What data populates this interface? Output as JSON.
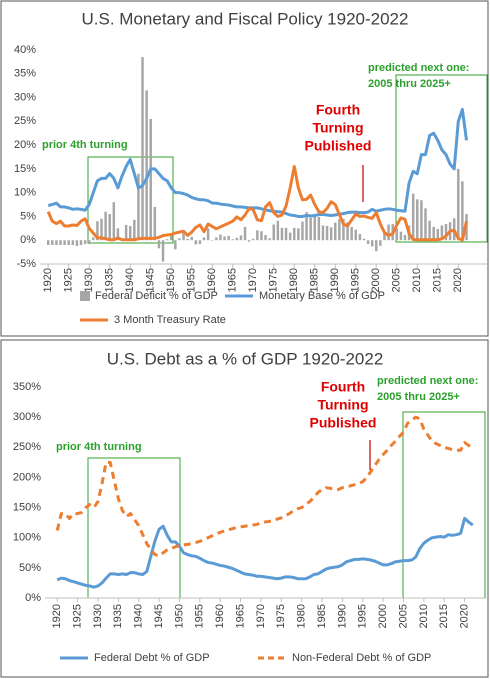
{
  "chart_data": [
    {
      "type": "combo",
      "title": "U.S. Monetary and Fiscal Policy 1920-2022",
      "x": [
        1920,
        1921,
        1922,
        1923,
        1924,
        1925,
        1926,
        1927,
        1928,
        1929,
        1930,
        1931,
        1932,
        1933,
        1934,
        1935,
        1936,
        1937,
        1938,
        1939,
        1940,
        1941,
        1942,
        1943,
        1944,
        1945,
        1946,
        1947,
        1948,
        1949,
        1950,
        1951,
        1952,
        1953,
        1954,
        1955,
        1956,
        1957,
        1958,
        1959,
        1960,
        1961,
        1962,
        1963,
        1964,
        1965,
        1966,
        1967,
        1968,
        1969,
        1970,
        1971,
        1972,
        1973,
        1974,
        1975,
        1976,
        1977,
        1978,
        1979,
        1980,
        1981,
        1982,
        1983,
        1984,
        1985,
        1986,
        1987,
        1988,
        1989,
        1990,
        1991,
        1992,
        1993,
        1994,
        1995,
        1996,
        1997,
        1998,
        1999,
        2000,
        2001,
        2002,
        2003,
        2004,
        2005,
        2006,
        2007,
        2008,
        2009,
        2010,
        2011,
        2012,
        2013,
        2014,
        2015,
        2016,
        2017,
        2018,
        2019,
        2020,
        2021,
        2022
      ],
      "series": [
        {
          "name": "Federal Deficit % of GDP",
          "type": "bar",
          "color": "#a6a6a6",
          "values": [
            -1,
            -1,
            -1,
            -1,
            -1,
            -1,
            -1,
            -1.2,
            -1,
            -0.8,
            -0.8,
            0.6,
            4,
            4.5,
            6,
            5.5,
            8,
            2.5,
            0.1,
            3.2,
            3,
            4.3,
            14,
            38.5,
            31.5,
            25.5,
            7,
            -1.7,
            -4.5,
            0.2,
            1.1,
            -1.9,
            0.4,
            1.7,
            0.3,
            0.7,
            -0.9,
            -0.8,
            0.6,
            2.5,
            -0.1,
            0.6,
            1.2,
            0.8,
            0.9,
            0.2,
            0.5,
            1,
            2.8,
            -0.3,
            0.3,
            2.1,
            1.9,
            1.1,
            0.4,
            3.3,
            4.1,
            2.6,
            2.6,
            1.6,
            2.6,
            2.5,
            3.9,
            5.9,
            4.7,
            5,
            4.9,
            3.1,
            3,
            2.7,
            3.7,
            4.4,
            4.5,
            3.8,
            2.8,
            2.2,
            1.3,
            0.3,
            -0.8,
            -1.3,
            -2.3,
            -1.2,
            1.5,
            3.3,
            3.4,
            2.5,
            1.8,
            1.1,
            3.1,
            9.8,
            8.6,
            8.4,
            6.7,
            4.1,
            2.8,
            2.4,
            3.1,
            3.4,
            3.8,
            4.6,
            15,
            12.4,
            5.5
          ]
        },
        {
          "name": "Monetary Base % of GDP",
          "type": "line",
          "color": "#5b9bd5",
          "values": [
            7.3,
            7.5,
            7.8,
            7,
            7,
            6.8,
            6.5,
            6.6,
            6.5,
            6.3,
            7.5,
            10,
            12.5,
            13,
            13,
            14,
            13,
            11,
            13.5,
            15.5,
            17,
            14,
            11,
            11.5,
            13,
            15,
            15,
            14,
            13,
            12.5,
            11,
            10,
            10,
            9.8,
            9.5,
            9,
            8.7,
            8.5,
            8.5,
            8.3,
            7.8,
            7.8,
            7.6,
            7.5,
            7.4,
            7.2,
            7,
            7,
            6.9,
            6.8,
            6.8,
            6.8,
            6.6,
            6.4,
            6.2,
            6.1,
            6,
            5.9,
            5.6,
            5.3,
            5.2,
            5,
            5,
            5.2,
            5.1,
            5.2,
            5.4,
            5.4,
            5.3,
            5.2,
            5.3,
            5.5,
            5.6,
            5.8,
            5.9,
            5.9,
            5.8,
            5.8,
            5.9,
            6.5,
            6.1,
            6.3,
            6.5,
            6.6,
            6.5,
            6.3,
            6.2,
            6.1,
            12,
            14.5,
            14,
            18,
            18,
            22,
            22.5,
            21,
            19,
            18,
            16,
            15,
            25,
            27.5,
            21
          ]
        },
        {
          "name": "3 Month Treasury Rate",
          "type": "line",
          "color": "#ed7d31",
          "values": [
            6,
            4,
            3.5,
            4,
            3,
            3,
            3.2,
            3.1,
            4,
            4.5,
            2.5,
            1.5,
            0.5,
            0.5,
            0.3,
            0.1,
            0.1,
            0.5,
            0.1,
            0.1,
            0.1,
            0.1,
            0.3,
            0.4,
            0.4,
            0.4,
            0.4,
            0.6,
            1,
            1.1,
            1.2,
            1.5,
            1.7,
            1.9,
            1,
            1.7,
            2.7,
            3.2,
            1.8,
            3.4,
            2.9,
            2.4,
            2.8,
            3.2,
            3.6,
            4,
            4.9,
            4.3,
            5.3,
            6.7,
            6.4,
            4.3,
            4.1,
            7,
            7.9,
            5.8,
            5,
            5.3,
            7.2,
            11,
            15.5,
            11,
            8.5,
            8.6,
            9.5,
            7.5,
            6,
            5.8,
            6.7,
            8.1,
            7.5,
            5.4,
            3.4,
            3,
            4.3,
            5.5,
            5,
            5.1,
            4.8,
            4.6,
            5.8,
            3.4,
            1.6,
            1,
            1.4,
            3.2,
            4.7,
            4.4,
            1.4,
            0.15,
            0.1,
            0.1,
            0.1,
            0.1,
            0.1,
            0.1,
            0.3,
            0.9,
            1.9,
            2.1,
            0.4,
            0.05,
            4
          ]
        }
      ],
      "xlim": [
        1918,
        2027
      ],
      "xticks": [
        1920,
        1925,
        1930,
        1935,
        1940,
        1945,
        1950,
        1955,
        1960,
        1965,
        1970,
        1975,
        1980,
        1985,
        1990,
        1995,
        2000,
        2005,
        2010,
        2015,
        2020
      ],
      "ylim": [
        -5,
        40
      ],
      "yticks": [
        {
          "value": -5,
          "label": "-5%"
        },
        {
          "value": 0,
          "label": "0%"
        },
        {
          "value": 5,
          "label": "5%"
        },
        {
          "value": 10,
          "label": "10%"
        },
        {
          "value": 15,
          "label": "15%"
        },
        {
          "value": 20,
          "label": "20%"
        },
        {
          "value": 25,
          "label": "25%"
        },
        {
          "value": 30,
          "label": "30%"
        },
        {
          "value": 35,
          "label": "35%"
        },
        {
          "value": 40,
          "label": "40%"
        }
      ],
      "grid": false,
      "legend": "bottom",
      "annotations": {
        "prior": "prior 4th turning",
        "published": [
          "Fourth",
          "Turning",
          "Published"
        ],
        "predicted": [
          "predicted next one:",
          "2005 thru 2025+"
        ]
      }
    },
    {
      "type": "line",
      "title": "U.S. Debt as a % of GDP 1920-2022",
      "x": [
        1920,
        1921,
        1922,
        1923,
        1924,
        1925,
        1926,
        1927,
        1928,
        1929,
        1930,
        1931,
        1932,
        1933,
        1934,
        1935,
        1936,
        1937,
        1938,
        1939,
        1940,
        1941,
        1942,
        1943,
        1944,
        1945,
        1946,
        1947,
        1948,
        1949,
        1950,
        1951,
        1952,
        1953,
        1954,
        1955,
        1956,
        1957,
        1958,
        1959,
        1960,
        1961,
        1962,
        1963,
        1964,
        1965,
        1966,
        1967,
        1968,
        1969,
        1970,
        1971,
        1972,
        1973,
        1974,
        1975,
        1976,
        1977,
        1978,
        1979,
        1980,
        1981,
        1982,
        1983,
        1984,
        1985,
        1986,
        1987,
        1988,
        1989,
        1990,
        1991,
        1992,
        1993,
        1994,
        1995,
        1996,
        1997,
        1998,
        1999,
        2000,
        2001,
        2002,
        2003,
        2004,
        2005,
        2006,
        2007,
        2008,
        2009,
        2010,
        2011,
        2012,
        2013,
        2014,
        2015,
        2016,
        2017,
        2018,
        2019,
        2020,
        2021,
        2022
      ],
      "series": [
        {
          "name": "Federal Debt % of GDP",
          "type": "line",
          "color": "#5b9bd5",
          "style": "solid",
          "values": [
            30,
            33,
            32,
            29,
            27,
            25,
            23,
            21,
            20,
            18,
            20,
            25,
            33,
            40,
            40,
            39,
            40,
            39,
            42,
            42,
            40,
            39,
            44,
            70,
            95,
            114,
            119,
            104,
            93,
            93,
            86,
            75,
            72,
            70,
            69,
            66,
            62,
            59,
            58,
            56,
            54,
            53,
            51,
            49,
            46,
            43,
            40,
            39,
            38,
            36,
            36,
            35,
            34,
            33,
            32,
            33,
            35,
            35,
            34,
            32,
            32,
            32,
            35,
            39,
            40,
            44,
            48,
            50,
            51,
            52,
            55,
            60,
            62,
            64,
            64,
            65,
            64,
            63,
            61,
            58,
            55,
            55,
            57,
            60,
            61,
            62,
            62,
            63,
            68,
            82,
            91,
            96,
            100,
            101,
            102,
            101,
            105,
            104,
            105,
            107,
            132,
            126,
            121
          ]
        },
        {
          "name": "Non-Federal Debt % of GDP",
          "type": "line",
          "color": "#ed7d31",
          "style": "dashed",
          "values": [
            112,
            140,
            140,
            132,
            140,
            140,
            142,
            150,
            155,
            150,
            160,
            190,
            225,
            225,
            195,
            165,
            145,
            135,
            140,
            130,
            120,
            105,
            90,
            80,
            72,
            70,
            75,
            80,
            82,
            85,
            87,
            88,
            89,
            90,
            92,
            94,
            97,
            100,
            103,
            106,
            109,
            111,
            113,
            115,
            117,
            118,
            119,
            120,
            121,
            122,
            125,
            126,
            127,
            128,
            131,
            133,
            137,
            140,
            145,
            148,
            150,
            155,
            160,
            167,
            175,
            180,
            183,
            182,
            180,
            180,
            183,
            185,
            186,
            188,
            190,
            193,
            200,
            210,
            220,
            230,
            238,
            245,
            253,
            260,
            268,
            275,
            290,
            295,
            300,
            297,
            280,
            270,
            260,
            256,
            253,
            250,
            248,
            246,
            245,
            245,
            258,
            253,
            248
          ]
        }
      ],
      "xlim": [
        1917,
        2025
      ],
      "xticks": [
        1920,
        1925,
        1930,
        1935,
        1940,
        1945,
        1950,
        1955,
        1960,
        1965,
        1970,
        1975,
        1980,
        1985,
        1990,
        1995,
        2000,
        2005,
        2010,
        2015,
        2020
      ],
      "ylim": [
        0,
        350
      ],
      "yticks": [
        {
          "value": 0,
          "label": "0%"
        },
        {
          "value": 50,
          "label": "50%"
        },
        {
          "value": 100,
          "label": "100%"
        },
        {
          "value": 150,
          "label": "150%"
        },
        {
          "value": 200,
          "label": "200%"
        },
        {
          "value": 250,
          "label": "250%"
        },
        {
          "value": 300,
          "label": "300%"
        },
        {
          "value": 350,
          "label": "350%"
        }
      ],
      "grid": false,
      "legend": "bottom",
      "annotations": {
        "prior": "prior 4th turning",
        "published": [
          "Fourth",
          "Turning",
          "Published"
        ],
        "predicted": [
          "predicted next one:",
          "2005 thru 2025+"
        ]
      }
    }
  ]
}
